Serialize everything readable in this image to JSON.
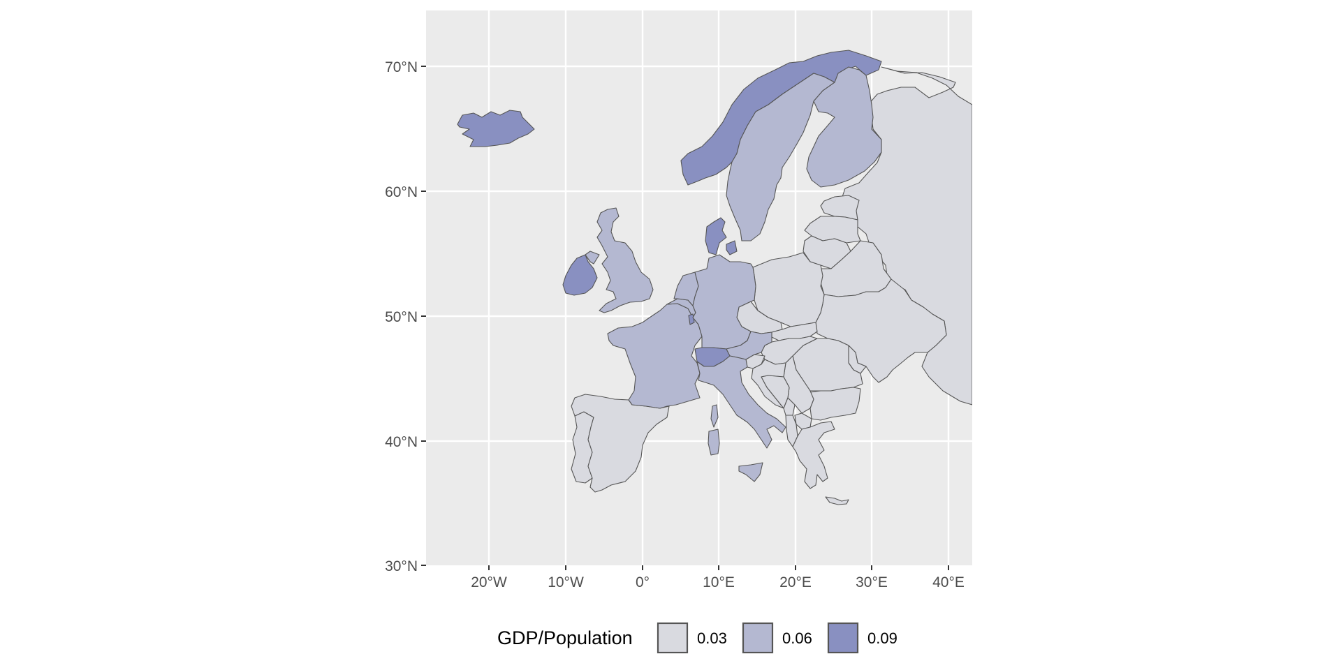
{
  "map": {
    "lat_labels": [
      "70°N",
      "60°N",
      "50°N",
      "40°N",
      "30°N"
    ],
    "lon_labels": [
      "20°W",
      "10°W",
      "0°",
      "10°E",
      "20°E",
      "30°E",
      "40°E"
    ],
    "lat_values": [
      70,
      60,
      50,
      40,
      30
    ],
    "lon_values": [
      -20,
      -10,
      0,
      10,
      20,
      30,
      40
    ],
    "extent": {
      "lon_min": -28.2,
      "lon_max": 43.2,
      "lat_min": 30,
      "lat_max": 74.5
    },
    "panel_background": "#ebebeb",
    "grid_color": "#ffffff"
  },
  "legend": {
    "title": "GDP/Population",
    "items": [
      {
        "label": "0.03",
        "color": "#d9dae0"
      },
      {
        "label": "0.06",
        "color": "#b4b8d1"
      },
      {
        "label": "0.09",
        "color": "#8990c1"
      }
    ]
  },
  "regions": [
    {
      "name": "Iceland",
      "class": "0.09"
    },
    {
      "name": "Ireland",
      "class": "0.09"
    },
    {
      "name": "United Kingdom",
      "class": "0.06"
    },
    {
      "name": "Norway",
      "class": "0.09"
    },
    {
      "name": "Sweden",
      "class": "0.06"
    },
    {
      "name": "Finland",
      "class": "0.06"
    },
    {
      "name": "Denmark",
      "class": "0.09"
    },
    {
      "name": "Netherlands",
      "class": "0.06"
    },
    {
      "name": "Belgium",
      "class": "0.06"
    },
    {
      "name": "Luxembourg",
      "class": "0.09"
    },
    {
      "name": "France",
      "class": "0.06"
    },
    {
      "name": "Germany",
      "class": "0.06"
    },
    {
      "name": "Switzerland",
      "class": "0.09"
    },
    {
      "name": "Austria",
      "class": "0.06"
    },
    {
      "name": "Italy",
      "class": "0.06"
    },
    {
      "name": "Spain",
      "class": "0.03"
    },
    {
      "name": "Portugal",
      "class": "0.03"
    },
    {
      "name": "Poland",
      "class": "0.03"
    },
    {
      "name": "Czechia",
      "class": "0.03"
    },
    {
      "name": "Slovakia",
      "class": "0.03"
    },
    {
      "name": "Hungary",
      "class": "0.03"
    },
    {
      "name": "Slovenia",
      "class": "0.03"
    },
    {
      "name": "Croatia",
      "class": "0.03"
    },
    {
      "name": "Bosnia and Herzegovina",
      "class": "0.03"
    },
    {
      "name": "Serbia",
      "class": "0.03"
    },
    {
      "name": "Montenegro",
      "class": "0.03"
    },
    {
      "name": "Albania",
      "class": "0.03"
    },
    {
      "name": "North Macedonia",
      "class": "0.03"
    },
    {
      "name": "Greece",
      "class": "0.03"
    },
    {
      "name": "Bulgaria",
      "class": "0.03"
    },
    {
      "name": "Romania",
      "class": "0.03"
    },
    {
      "name": "Moldova",
      "class": "0.03"
    },
    {
      "name": "Ukraine",
      "class": "0.03"
    },
    {
      "name": "Belarus",
      "class": "0.03"
    },
    {
      "name": "Lithuania",
      "class": "0.03"
    },
    {
      "name": "Latvia",
      "class": "0.03"
    },
    {
      "name": "Estonia",
      "class": "0.03"
    },
    {
      "name": "Russia",
      "class": "0.03"
    }
  ]
}
